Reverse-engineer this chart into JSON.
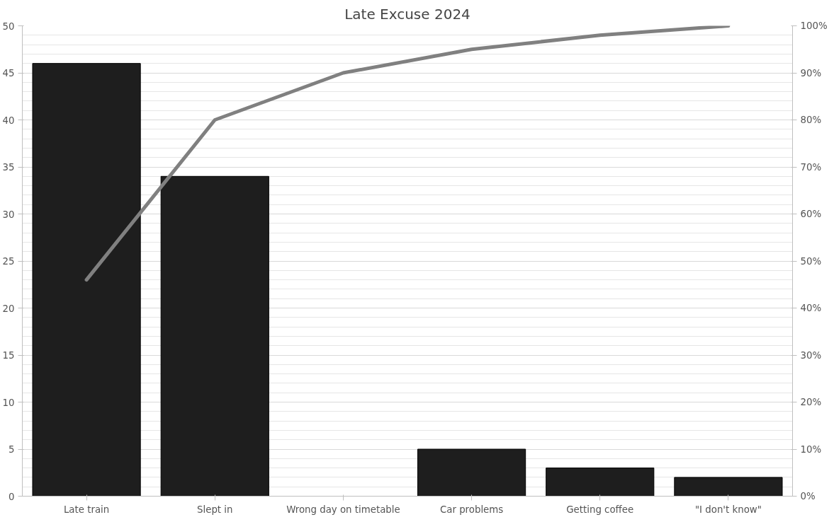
{
  "chart_data": {
    "type": "bar",
    "title": "Late Excuse 2024",
    "categories": [
      "Late train",
      "Slept in",
      "Wrong day on timetable",
      "Car problems",
      "Getting coffee",
      "\"I don't know\""
    ],
    "series": [
      {
        "color": "#1e1e1e",
        "values": [
          46,
          34,
          null,
          5,
          3,
          2
        ]
      },
      {
        "type": "line",
        "axis": "y2",
        "color": "#808080",
        "values": [
          46,
          80,
          90,
          95,
          98,
          100
        ]
      }
    ],
    "ylim": [
      0,
      50
    ],
    "yticks": [
      0,
      5,
      10,
      15,
      20,
      25,
      30,
      35,
      40,
      45,
      50
    ],
    "y2lim": [
      0,
      100
    ],
    "y2ticks": [
      {
        "value": 0,
        "label": "0%"
      },
      {
        "value": 10,
        "label": "10%"
      },
      {
        "value": 20,
        "label": "20%"
      },
      {
        "value": 30,
        "label": "30%"
      },
      {
        "value": 40,
        "label": "40%"
      },
      {
        "value": 50,
        "label": "50%"
      },
      {
        "value": 60,
        "label": "60%"
      },
      {
        "value": 70,
        "label": "70%"
      },
      {
        "value": 80,
        "label": "80%"
      },
      {
        "value": 90,
        "label": "90%"
      },
      {
        "value": 100,
        "label": "100%"
      }
    ],
    "grid": "y",
    "line_style": "solid",
    "marker": "none"
  }
}
